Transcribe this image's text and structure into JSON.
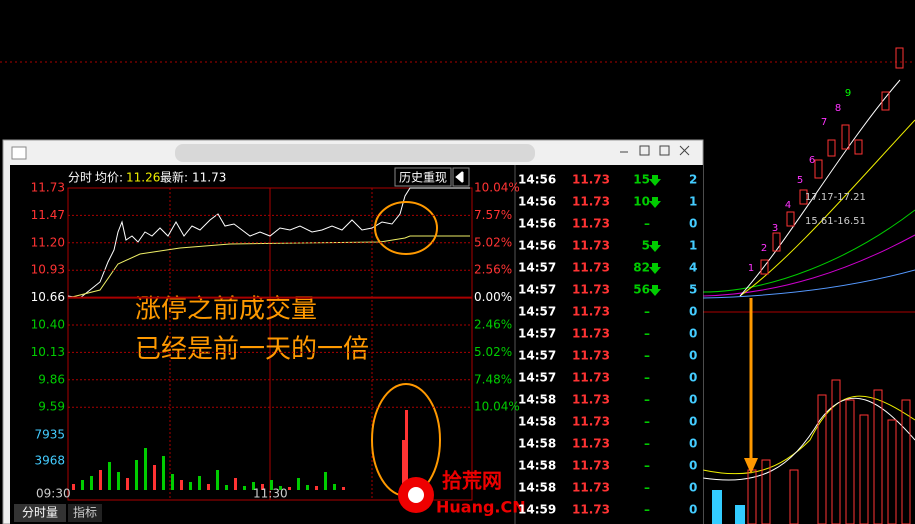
{
  "header": {
    "mode": "分时",
    "avg_label": "均价:",
    "avg": "11.26",
    "last_label": "最新:",
    "last": "11.73",
    "history_button": "历史重现"
  },
  "price_axis": [
    "11.73",
    "11.47",
    "11.20",
    "10.93",
    "10.66",
    "10.40",
    "10.13",
    "9.86",
    "9.59"
  ],
  "volume_axis": [
    "7935",
    "3968"
  ],
  "pct_axis": [
    "10.04%",
    "7.57%",
    "5.02%",
    "2.56%",
    "0.00%",
    "2.46%",
    "5.02%",
    "7.48%",
    "10.04%"
  ],
  "time_axis": [
    "09:30",
    "11:30"
  ],
  "tabs": [
    "分时量",
    "指标"
  ],
  "annotation": [
    "涨停之前成交量",
    "已经是前一天的一倍"
  ],
  "ticks": [
    {
      "time": "14:56",
      "price": "11.73",
      "volume": "15",
      "dir": "down",
      "count": "2"
    },
    {
      "time": "14:56",
      "price": "11.73",
      "volume": "10",
      "dir": "down",
      "count": "1"
    },
    {
      "time": "14:56",
      "price": "11.73",
      "volume": "–",
      "count": "0"
    },
    {
      "time": "14:56",
      "price": "11.73",
      "volume": "5",
      "dir": "down",
      "count": "1"
    },
    {
      "time": "14:57",
      "price": "11.73",
      "volume": "82",
      "dir": "down",
      "count": "4"
    },
    {
      "time": "14:57",
      "price": "11.73",
      "volume": "56",
      "dir": "down",
      "count": "5"
    },
    {
      "time": "14:57",
      "price": "11.73",
      "volume": "–",
      "count": "0"
    },
    {
      "time": "14:57",
      "price": "11.73",
      "volume": "–",
      "count": "0"
    },
    {
      "time": "14:57",
      "price": "11.73",
      "volume": "–",
      "count": "0"
    },
    {
      "time": "14:57",
      "price": "11.73",
      "volume": "–",
      "count": "0"
    },
    {
      "time": "14:58",
      "price": "11.73",
      "volume": "–",
      "count": "0"
    },
    {
      "time": "14:58",
      "price": "11.73",
      "volume": "–",
      "count": "0"
    },
    {
      "time": "14:58",
      "price": "11.73",
      "volume": "–",
      "count": "0"
    },
    {
      "time": "14:58",
      "price": "11.73",
      "volume": "–",
      "count": "0"
    },
    {
      "time": "14:58",
      "price": "11.73",
      "volume": "–",
      "count": "0"
    },
    {
      "time": "14:59",
      "price": "11.73",
      "volume": "–",
      "count": "0"
    }
  ],
  "kline": {
    "range_labels": [
      "17.17-17.21",
      "15.61-16.51"
    ],
    "counts": [
      "1",
      "2",
      "3",
      "4",
      "5",
      "6",
      "7",
      "8",
      "9"
    ]
  },
  "watermark": {
    "site": "拾荒网",
    "domain": "Huang.CN"
  }
}
